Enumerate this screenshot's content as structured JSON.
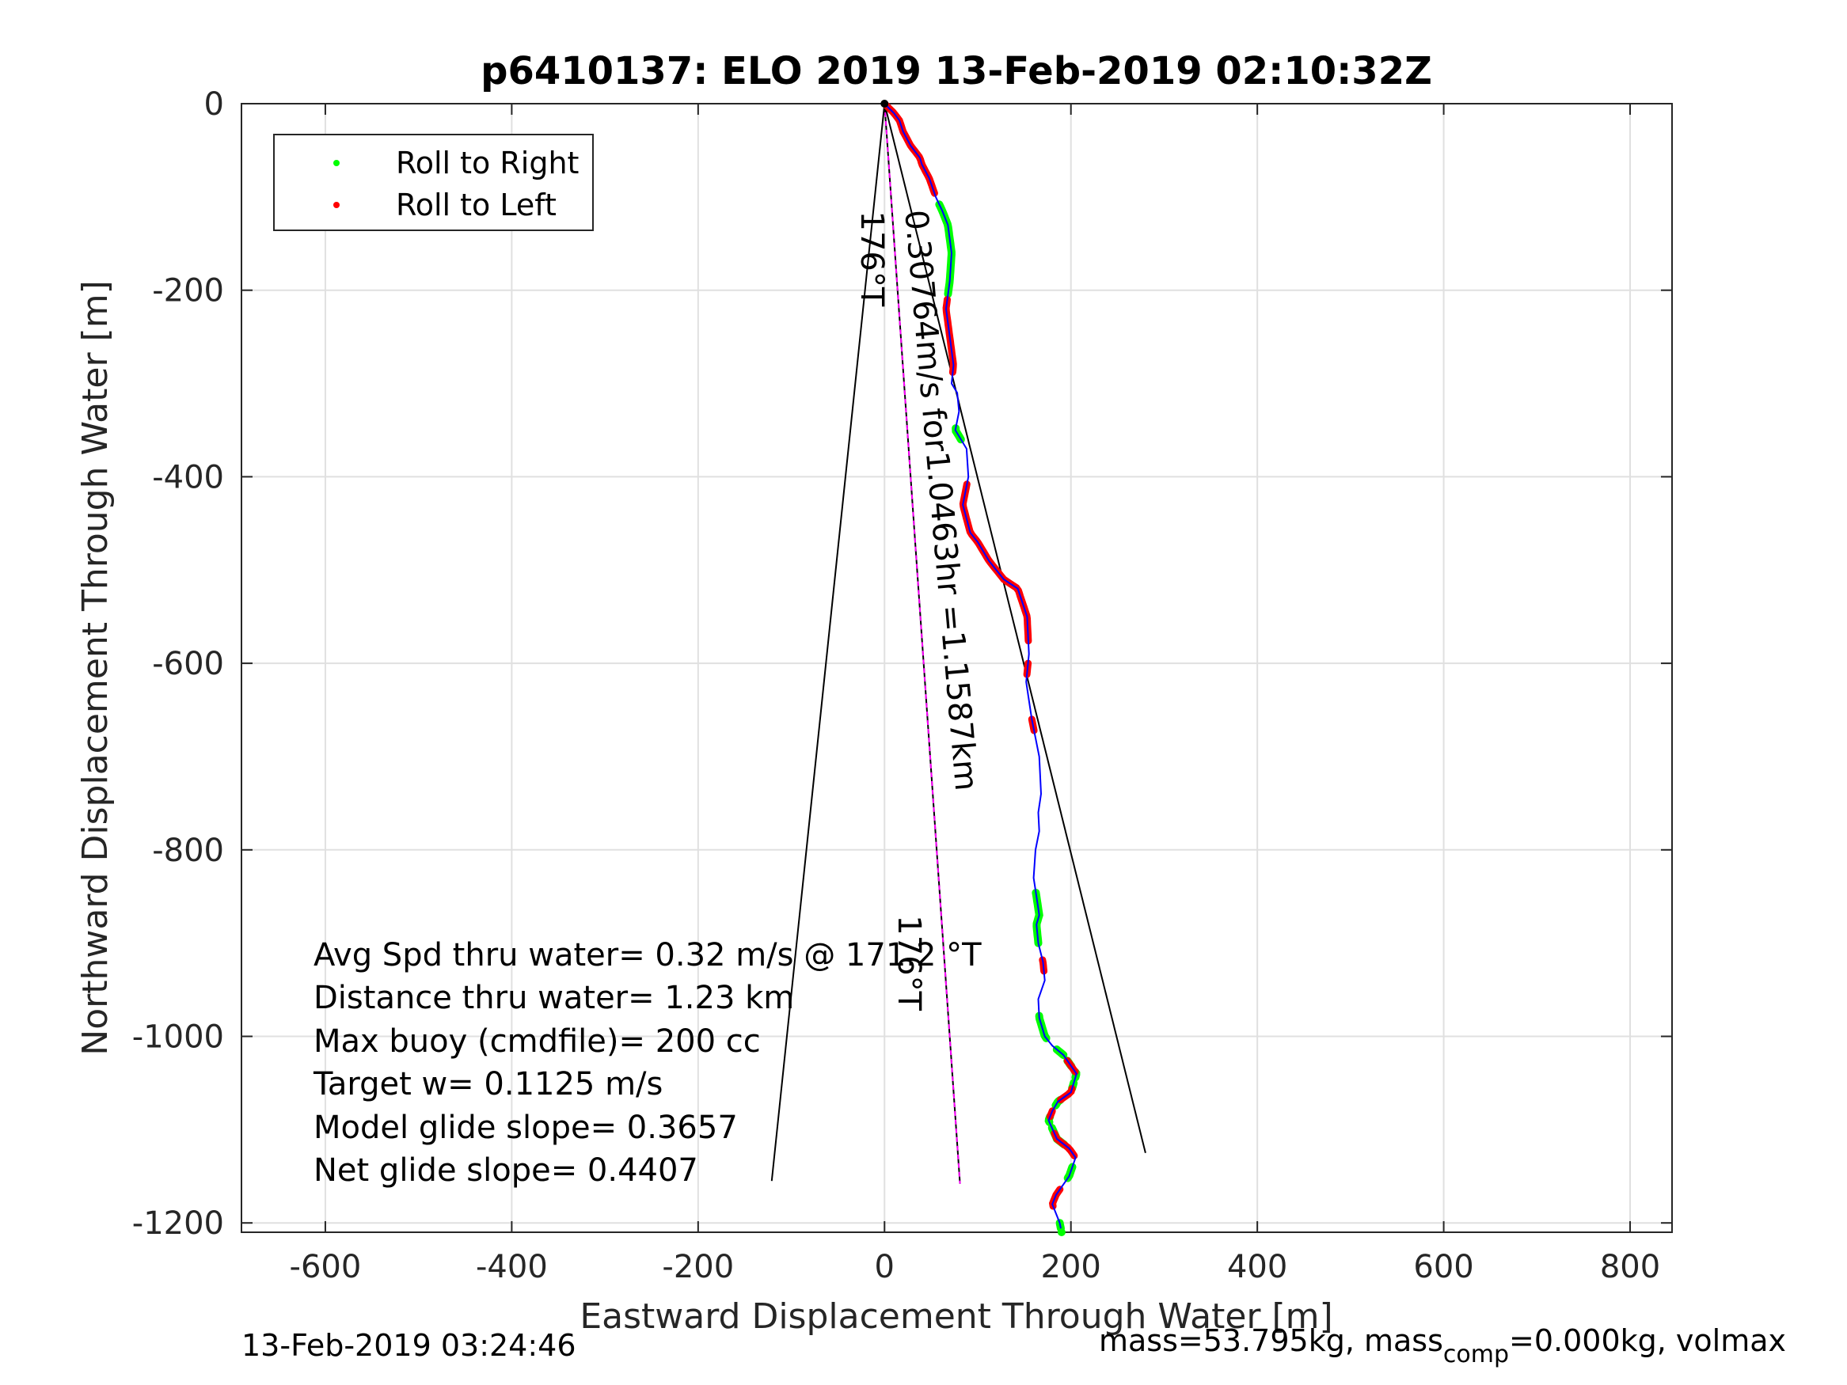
{
  "chart_data": {
    "type": "line",
    "title": "p6410137: ELO 2019 13-Feb-2019 02:10:32Z",
    "xlabel": "Eastward Displacement Through Water [m]",
    "ylabel": "Northward Displacement Through Water [m]",
    "xlim": [
      -690,
      845
    ],
    "ylim": [
      -1210,
      0
    ],
    "xticks": [
      -600,
      -400,
      -200,
      0,
      200,
      400,
      600,
      800
    ],
    "yticks": [
      0,
      -200,
      -400,
      -600,
      -800,
      -1000,
      -1200
    ],
    "xtick_labels": [
      "-600",
      "-400",
      "-200",
      "0",
      "200",
      "400",
      "600",
      "800"
    ],
    "ytick_labels": [
      "0",
      "-200",
      "-400",
      "-600",
      "-800",
      "-1000",
      "-1200"
    ],
    "grid": true,
    "legend": {
      "position": "top-left",
      "entries": [
        {
          "label": "Roll to Right",
          "color": "#00ff00"
        },
        {
          "label": "Roll to Left",
          "color": "#ff0000"
        }
      ]
    },
    "colors": {
      "track": "#0000ff",
      "roll_right": "#00ff00",
      "roll_left": "#ff0000",
      "model_heading": "#ff00ff",
      "reference_lines": "#000000",
      "grid": "#e0e0e0"
    },
    "series": [
      {
        "role": "track",
        "x": [
          0,
          10,
          16,
          20,
          28,
          38,
          40,
          48,
          55,
          62,
          68,
          72,
          70,
          66,
          70,
          74,
          72,
          78,
          80,
          76,
          88,
          90,
          84,
          92,
          100,
          112,
          128,
          143,
          153,
          155,
          152,
          158,
          166,
          168,
          165,
          166,
          162,
          160,
          163,
          166,
          163,
          165,
          170,
          172,
          165,
          166,
          172,
          180,
          192,
          206,
          200,
          186,
          180,
          176,
          185,
          198,
          205,
          198,
          184,
          180,
          188,
          190
        ],
        "y": [
          0,
          -10,
          -18,
          -30,
          -45,
          -58,
          -65,
          -80,
          -100,
          -115,
          -130,
          -160,
          -190,
          -220,
          -250,
          -280,
          -300,
          -310,
          -330,
          -350,
          -370,
          -400,
          -430,
          -460,
          -470,
          -490,
          -510,
          -520,
          -550,
          -590,
          -620,
          -660,
          -700,
          -740,
          -760,
          -780,
          -800,
          -830,
          -850,
          -870,
          -880,
          -900,
          -920,
          -940,
          -960,
          -980,
          -1000,
          -1010,
          -1020,
          -1040,
          -1060,
          -1070,
          -1080,
          -1090,
          -1110,
          -1120,
          -1130,
          -1150,
          -1170,
          -1180,
          -1200,
          -1210
        ]
      },
      {
        "role": "model_heading",
        "x": [
          0,
          81
        ],
        "y": [
          0,
          -1158
        ]
      },
      {
        "role": "reference_line",
        "x": [
          0,
          -121
        ],
        "y": [
          0,
          -1155
        ]
      },
      {
        "role": "reference_line",
        "x": [
          0,
          280
        ],
        "y": [
          0,
          -1125
        ]
      }
    ],
    "roll_right_ranges": [
      [
        18,
        34
      ],
      [
        58,
        60
      ],
      [
        141,
        150
      ],
      [
        163,
        167
      ],
      [
        169,
        170
      ],
      [
        171,
        172
      ],
      [
        173,
        174
      ],
      [
        175,
        176
      ],
      [
        178,
        179
      ],
      [
        181,
        182
      ],
      [
        183,
        185
      ],
      [
        185,
        186
      ],
      [
        190,
        192
      ],
      [
        200,
        201
      ]
    ],
    "roll_left_ranges": [
      [
        0,
        16
      ],
      [
        35,
        48
      ],
      [
        68,
        96
      ],
      [
        100,
        102
      ],
      [
        110,
        112
      ],
      [
        153,
        155
      ],
      [
        171,
        173
      ],
      [
        176,
        178
      ],
      [
        180,
        181
      ],
      [
        184,
        188
      ],
      [
        194,
        197
      ]
    ],
    "annotations": [
      {
        "text": "0.30764m/s for1.0463hr =1.1587km",
        "x": 22,
        "y": -115,
        "rotation": 85
      },
      {
        "text": "176°T",
        "x": -25,
        "y": -115,
        "rotation": 90
      },
      {
        "text": "176°T",
        "x": 15,
        "y": -870,
        "rotation": 90
      }
    ],
    "stats_lines": [
      "Avg Spd thru water=  0.32 m/s @ 171.2 °T",
      "Distance thru water=  1.23 km",
      "Max buoy (cmdfile)= 200 cc",
      "Target w= 0.1125 m/s",
      "Model glide slope= 0.3657",
      "Net glide slope= 0.4407"
    ]
  },
  "footer": {
    "timestamp": "13-Feb-2019 03:24:46",
    "mass_text": "mass=53.795kg, mass",
    "mass_sub": "comp",
    "mass_tail": "=0.000kg, volmax"
  }
}
